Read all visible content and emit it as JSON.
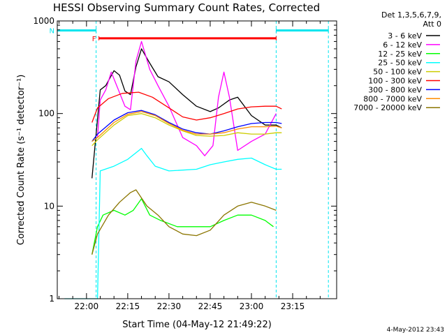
{
  "chart_data": {
    "type": "line",
    "title": "HESSI Observing Summary Count Rates, Corrected",
    "xlabel": "Start Time (04-May-12 21:49:22)",
    "ylabel": "Corrected Count Rate (s⁻¹ detector⁻¹)",
    "xlim": [
      "21:49:22",
      "23:31:00"
    ],
    "ylim": [
      1,
      1000
    ],
    "yscale": "log",
    "x_ticks": [
      "22:00",
      "22:15",
      "22:30",
      "22:45",
      "23:00",
      "23:15"
    ],
    "y_ticks": [
      "1",
      "10",
      "100",
      "1000"
    ],
    "legend_title": [
      "Det 1,3,5,6,7,9,",
      "Att 0"
    ],
    "legend_position": "right",
    "footer": "4-May-2012 23:43",
    "flags": [
      {
        "label": "F",
        "color": "#ff0000",
        "start": "22:04:30",
        "end": "23:09:00",
        "level": 650
      },
      {
        "label": "N",
        "color": "#00e5ee",
        "start": "21:49:22",
        "end": "22:03:30",
        "level": 790
      },
      {
        "label": "",
        "color": "#00e5ee",
        "start": "23:09:00",
        "end": "23:28:00",
        "level": 790
      }
    ],
    "night_boundaries": [
      "22:03:30",
      "23:09:00",
      "23:28:00"
    ],
    "series": [
      {
        "name": "3 - 6 keV",
        "color": "#000000",
        "x": [
          "22:02:00",
          "22:05:00",
          "22:07:00",
          "22:10:00",
          "22:12:00",
          "22:14:00",
          "22:16:00",
          "22:18:00",
          "22:20:00",
          "22:23:00",
          "22:26:00",
          "22:30:00",
          "22:35:00",
          "22:40:00",
          "22:45:00",
          "22:48:00",
          "22:52:00",
          "22:55:00",
          "23:00:00",
          "23:05:00",
          "23:09:00",
          "23:11:00"
        ],
        "y": [
          20,
          180,
          200,
          290,
          260,
          175,
          160,
          320,
          500,
          350,
          250,
          220,
          160,
          120,
          105,
          115,
          140,
          150,
          95,
          75,
          75,
          70
        ]
      },
      {
        "name": "6 - 12 keV",
        "color": "#ff00ff",
        "x": [
          "22:04:00",
          "22:05:00",
          "22:07:00",
          "22:09:00",
          "22:11:00",
          "22:14:00",
          "22:16:00",
          "22:18:00",
          "22:20:00",
          "22:23:00",
          "22:26:00",
          "22:30:00",
          "22:35:00",
          "22:40:00",
          "22:43:00",
          "22:46:00",
          "22:48:00",
          "22:50:00",
          "22:52:00",
          "22:55:00",
          "23:00:00",
          "23:05:00",
          "23:09:00"
        ],
        "y": [
          55,
          140,
          180,
          280,
          200,
          120,
          110,
          370,
          600,
          300,
          200,
          120,
          55,
          45,
          35,
          45,
          150,
          280,
          150,
          40,
          50,
          60,
          100
        ]
      },
      {
        "name": "12 - 25 keV",
        "color": "#00ff00",
        "x": [
          "22:02:00",
          "22:04:00",
          "22:06:00",
          "22:10:00",
          "22:14:00",
          "22:17:00",
          "22:20:00",
          "22:23:00",
          "22:27:00",
          "22:33:00",
          "22:40:00",
          "22:45:00",
          "22:50:00",
          "22:55:00",
          "23:00:00",
          "23:05:00",
          "23:08:00"
        ],
        "y": [
          3,
          6,
          8,
          9,
          8,
          9,
          12,
          8,
          7,
          6,
          6,
          6,
          7,
          8,
          8,
          7,
          6
        ]
      },
      {
        "name": "25 - 50 keV",
        "color": "#00ffff",
        "x": [
          "21:52:00",
          "22:04:00",
          "22:05:00",
          "22:10:00",
          "22:15:00",
          "22:20:00",
          "22:22:00",
          "22:25:00",
          "22:30:00",
          "22:40:00",
          "22:45:00",
          "22:50:00",
          "22:55:00",
          "23:00:00",
          "23:05:00",
          "23:09:00",
          "23:11:00"
        ],
        "y": [
          1,
          1,
          24,
          27,
          32,
          42,
          35,
          27,
          24,
          25,
          28,
          30,
          32,
          33,
          28,
          25,
          25
        ]
      },
      {
        "name": "50 - 100 keV",
        "color": "#cccc00",
        "x": [
          "22:02:00",
          "22:04:00",
          "22:10:00",
          "22:15:00",
          "22:20:00",
          "22:25:00",
          "22:30:00",
          "22:35:00",
          "22:40:00",
          "22:45:00",
          "22:50:00",
          "22:55:00",
          "23:00:00",
          "23:05:00",
          "23:09:00",
          "23:11:00"
        ],
        "y": [
          45,
          52,
          75,
          95,
          100,
          90,
          75,
          65,
          58,
          57,
          58,
          62,
          60,
          60,
          62,
          62
        ]
      },
      {
        "name": "100 - 300 keV",
        "color": "#ff0000",
        "x": [
          "22:02:00",
          "22:04:00",
          "22:08:00",
          "22:13:00",
          "22:19:00",
          "22:24:00",
          "22:30:00",
          "22:35:00",
          "22:40:00",
          "22:45:00",
          "22:50:00",
          "22:55:00",
          "23:00:00",
          "23:05:00",
          "23:09:00",
          "23:11:00"
        ],
        "y": [
          80,
          115,
          145,
          165,
          170,
          150,
          115,
          92,
          85,
          90,
          100,
          112,
          118,
          120,
          120,
          112
        ]
      },
      {
        "name": "300 - 800 keV",
        "color": "#0000ff",
        "x": [
          "22:02:00",
          "22:04:00",
          "22:10:00",
          "22:15:00",
          "22:20:00",
          "22:25:00",
          "22:30:00",
          "22:35:00",
          "22:40:00",
          "22:45:00",
          "22:50:00",
          "22:55:00",
          "23:00:00",
          "23:05:00",
          "23:09:00",
          "23:11:00"
        ],
        "y": [
          50,
          60,
          85,
          102,
          108,
          97,
          80,
          68,
          62,
          60,
          65,
          72,
          78,
          80,
          80,
          78
        ]
      },
      {
        "name": "800 - 7000 keV",
        "color": "#ff8c00",
        "x": [
          "22:02:00",
          "22:04:00",
          "22:10:00",
          "22:15:00",
          "22:20:00",
          "22:25:00",
          "22:30:00",
          "22:35:00",
          "22:40:00",
          "22:45:00",
          "22:50:00",
          "22:55:00",
          "23:00:00",
          "23:05:00",
          "23:09:00",
          "23:11:00"
        ],
        "y": [
          50,
          55,
          80,
          98,
          105,
          95,
          78,
          66,
          60,
          60,
          62,
          68,
          72,
          72,
          73,
          70
        ]
      },
      {
        "name": "7000 - 20000 keV",
        "color": "#8b7500",
        "x": [
          "22:02:00",
          "22:04:00",
          "22:08:00",
          "22:12:00",
          "22:16:00",
          "22:18:00",
          "22:22:00",
          "22:26:00",
          "22:30:00",
          "22:35:00",
          "22:40:00",
          "22:45:00",
          "22:50:00",
          "22:55:00",
          "23:00:00",
          "23:05:00",
          "23:09:00"
        ],
        "y": [
          3,
          5,
          8,
          11,
          14,
          15,
          10,
          8,
          6,
          5,
          4.8,
          5.5,
          8,
          10,
          11,
          10,
          9
        ]
      }
    ]
  }
}
